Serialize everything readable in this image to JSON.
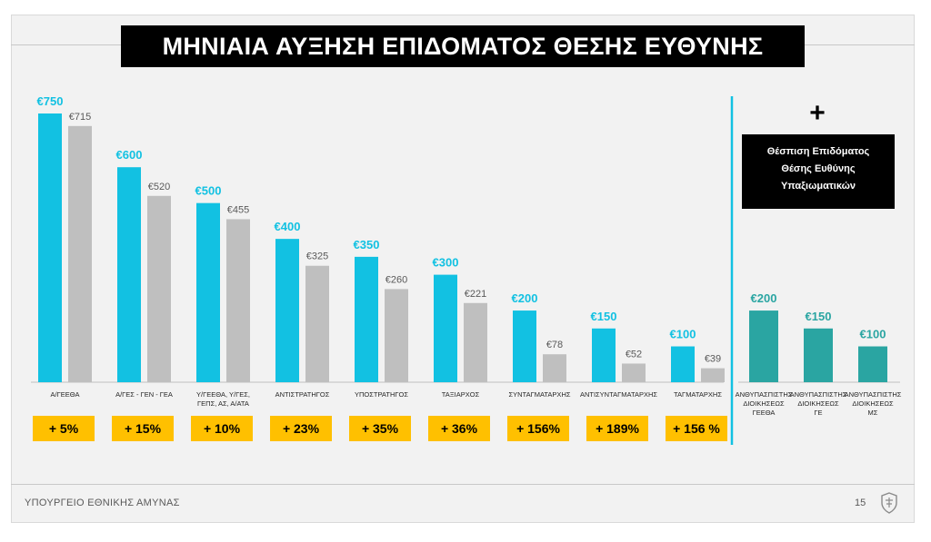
{
  "title": "ΜΗΝΙΑΙΑ ΑΥΞΗΣΗ ΕΠΙΔΟΜΑΤΟΣ ΘΕΣΗΣ ΕΥΘΥΝΗΣ",
  "colors": {
    "new": "#12c1e2",
    "old": "#bfbfbf",
    "extra": "#2aa5a2",
    "divider": "#12c1e2",
    "badge": "#ffc000"
  },
  "chart_data": [
    {
      "type": "bar",
      "categories": [
        "Α/ΓΕΕΘΑ",
        "Α/ΓΕΣ - ΓΕΝ - ΓΕΑ",
        "Υ/ΓΕΕΘΑ, Υ/ΓΕΣ, ΓΕΠΣ, ΑΣ, Α/ΑΤΑ",
        "ΑΝΤΙΣΤΡΑΤΗΓΟΣ",
        "ΥΠΟΣΤΡΑΤΗΓΟΣ",
        "ΤΑΞΙΑΡΧΟΣ",
        "ΣΥΝΤΑΓΜΑΤΑΡΧΗΣ",
        "ΑΝΤΙΣΥΝΤΑΓΜΑΤΑΡΧΗΣ",
        "ΤΑΓΜΑΤΑΡΧΗΣ"
      ],
      "series": [
        {
          "values": [
            750,
            600,
            500,
            400,
            350,
            300,
            200,
            150,
            100
          ],
          "labels": [
            "€750",
            "€600",
            "€500",
            "€400",
            "€350",
            "€300",
            "€200",
            "€150",
            "€100"
          ]
        },
        {
          "values": [
            715,
            520,
            455,
            325,
            260,
            221,
            78,
            52,
            39
          ],
          "labels": [
            "€715",
            "€520",
            "€455",
            "€325",
            "€260",
            "€221",
            "€78",
            "€52",
            "€39"
          ]
        }
      ],
      "percent_increase": [
        "+ 5%",
        "+ 15%",
        "+ 10%",
        "+ 23%",
        "+ 35%",
        "+ 36%",
        "+ 156%",
        "+ 189%",
        "+ 156 %"
      ],
      "ylim": [
        0,
        750
      ]
    },
    {
      "type": "bar",
      "categories": [
        "ΑΝΘΥΠΑΣΠΙΣΤΗΣ ΔΙΟΙΚΗΣΕΩΣ ΓΕΕΘΑ",
        "ΑΝΘΥΠΑΣΠΙΣΤΗΣ ΔΙΟΙΚΗΣΕΩΣ ΓΕ",
        "ΑΝΘΥΠΑΣΠΙΣΤΗΣ ΔΙΟΙΚΗΣΕΩΣ ΜΣ"
      ],
      "values": [
        200,
        150,
        100
      ],
      "labels": [
        "€200",
        "€150",
        "€100"
      ],
      "ylim": [
        0,
        750
      ]
    }
  ],
  "side_panel": {
    "plus": "+",
    "note_lines": [
      "Θέσπιση Επιδόματος",
      "Θέσης Ευθύνης",
      "Υπαξιωματικών"
    ]
  },
  "footer": {
    "ministry": "ΥΠΟΥΡΓΕΙΟ ΕΘΝΙΚΗΣ ΑΜΥΝΑΣ",
    "page": "15"
  }
}
